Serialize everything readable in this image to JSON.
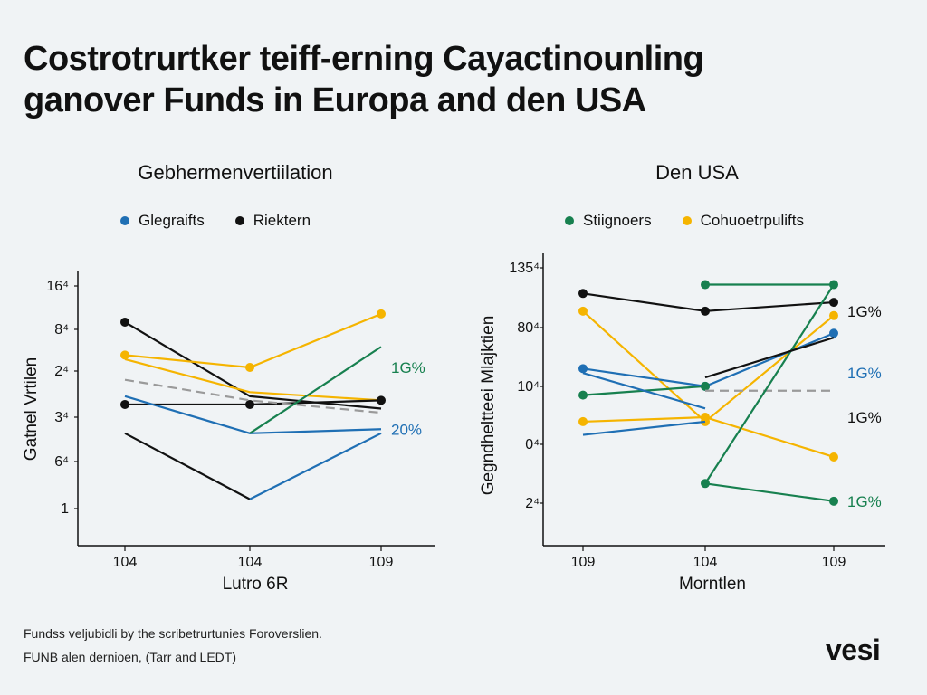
{
  "title_line1": "Costrotrurtker teiff-erning Cayactinounling",
  "title_line2": "ganover Funds in Europa and den USA",
  "footnote_1": "Fundss veljubidli by the scribetrurtunies Foroverslien.",
  "footnote_2": "FUNB alen dernioen, (Tarr and LEDT)",
  "brand": "vesi",
  "colors": {
    "blue": "#1f6fb4",
    "black": "#111111",
    "green": "#17804f",
    "yellow": "#f5b400",
    "gray": "#9a9a9a"
  },
  "chart_data": [
    {
      "type": "line",
      "title": "Gebhermenvertiilation",
      "xlabel": "Lutro 6R",
      "ylabel": "Gatnel Vrtilen",
      "categories": [
        "104",
        "104",
        "109"
      ],
      "y_tick_labels": [
        "16⁴",
        "8⁴",
        "2⁴",
        "3⁴",
        "6⁴",
        "1"
      ],
      "ylim": [
        0,
        6
      ],
      "grid": false,
      "legend": [
        {
          "label": "Glegraifts",
          "color": "blue"
        },
        {
          "label": "Riektern",
          "color": "black"
        }
      ],
      "series": [
        {
          "color": "black",
          "values": [
            5.1,
            3.3,
            3.0
          ],
          "start_marker": true,
          "markers": false
        },
        {
          "color": "yellow",
          "values": [
            4.3,
            4.0,
            5.3
          ],
          "markers": true
        },
        {
          "color": "yellow",
          "values": [
            4.2,
            3.4,
            3.2
          ],
          "markers": false
        },
        {
          "color": "black",
          "values": [
            3.1,
            3.1,
            3.2
          ],
          "markers": true
        },
        {
          "color": "blue",
          "values": [
            3.3,
            2.4,
            2.5
          ],
          "markers": false
        },
        {
          "color": "green",
          "values": [
            null,
            2.4,
            4.5
          ],
          "markers": false
        },
        {
          "color": "gray",
          "values": [
            3.7,
            3.2,
            2.9
          ],
          "markers": false
        },
        {
          "color": "black",
          "values": [
            2.4,
            0.8,
            null
          ],
          "markers": false
        },
        {
          "color": "blue",
          "values": [
            null,
            0.8,
            2.4
          ],
          "markers": false
        }
      ],
      "end_labels": [
        {
          "text": "1G%",
          "color": "green",
          "y": 4.0
        },
        {
          "text": "20%",
          "color": "blue",
          "y": 2.5
        }
      ]
    },
    {
      "type": "line",
      "title": "Den USA",
      "xlabel": "Morntlen",
      "ylabel": "Gegndheltteei Mlajktien",
      "categories": [
        "109",
        "104",
        "109"
      ],
      "y_tick_labels": [
        "135⁴",
        "80⁴",
        "10⁴",
        "0⁴",
        "2⁴"
      ],
      "ylim": [
        0,
        6
      ],
      "grid": false,
      "legend": [
        {
          "label": "Stiignoers",
          "color": "green"
        },
        {
          "label": "Cohuoetrpulifts",
          "color": "yellow"
        }
      ],
      "series": [
        {
          "color": "black",
          "values": [
            5.4,
            5.0,
            5.2
          ],
          "markers": true
        },
        {
          "color": "green",
          "values": [
            null,
            5.6,
            5.6
          ],
          "markers": true
        },
        {
          "color": "yellow",
          "values": [
            5.0,
            2.5,
            4.9
          ],
          "markers": true
        },
        {
          "color": "blue",
          "values": [
            3.7,
            3.3,
            4.5
          ],
          "markers": true
        },
        {
          "color": "green",
          "values": [
            3.1,
            3.3,
            null
          ],
          "markers": true
        },
        {
          "color": "blue",
          "values": [
            3.6,
            2.8,
            null
          ],
          "markers": false
        },
        {
          "color": "gray",
          "values": [
            null,
            3.2,
            3.2
          ],
          "markers": false
        },
        {
          "color": "yellow",
          "values": [
            2.5,
            2.6,
            1.7
          ],
          "markers": true
        },
        {
          "color": "blue",
          "values": [
            2.2,
            2.5,
            null
          ],
          "markers": false
        },
        {
          "color": "green",
          "values": [
            null,
            1.1,
            0.7
          ],
          "markers": true
        },
        {
          "color": "green",
          "values": [
            null,
            1.1,
            5.6
          ],
          "markers": false
        },
        {
          "color": "black",
          "values": [
            null,
            3.5,
            4.4
          ],
          "markers": false
        }
      ],
      "end_labels": [
        {
          "text": "1G%",
          "color": "black",
          "y": 5.0
        },
        {
          "text": "1G%",
          "color": "blue",
          "y": 3.6
        },
        {
          "text": "1G%",
          "color": "black",
          "y": 2.6
        },
        {
          "text": "1G%",
          "color": "green",
          "y": 0.7
        }
      ]
    }
  ]
}
